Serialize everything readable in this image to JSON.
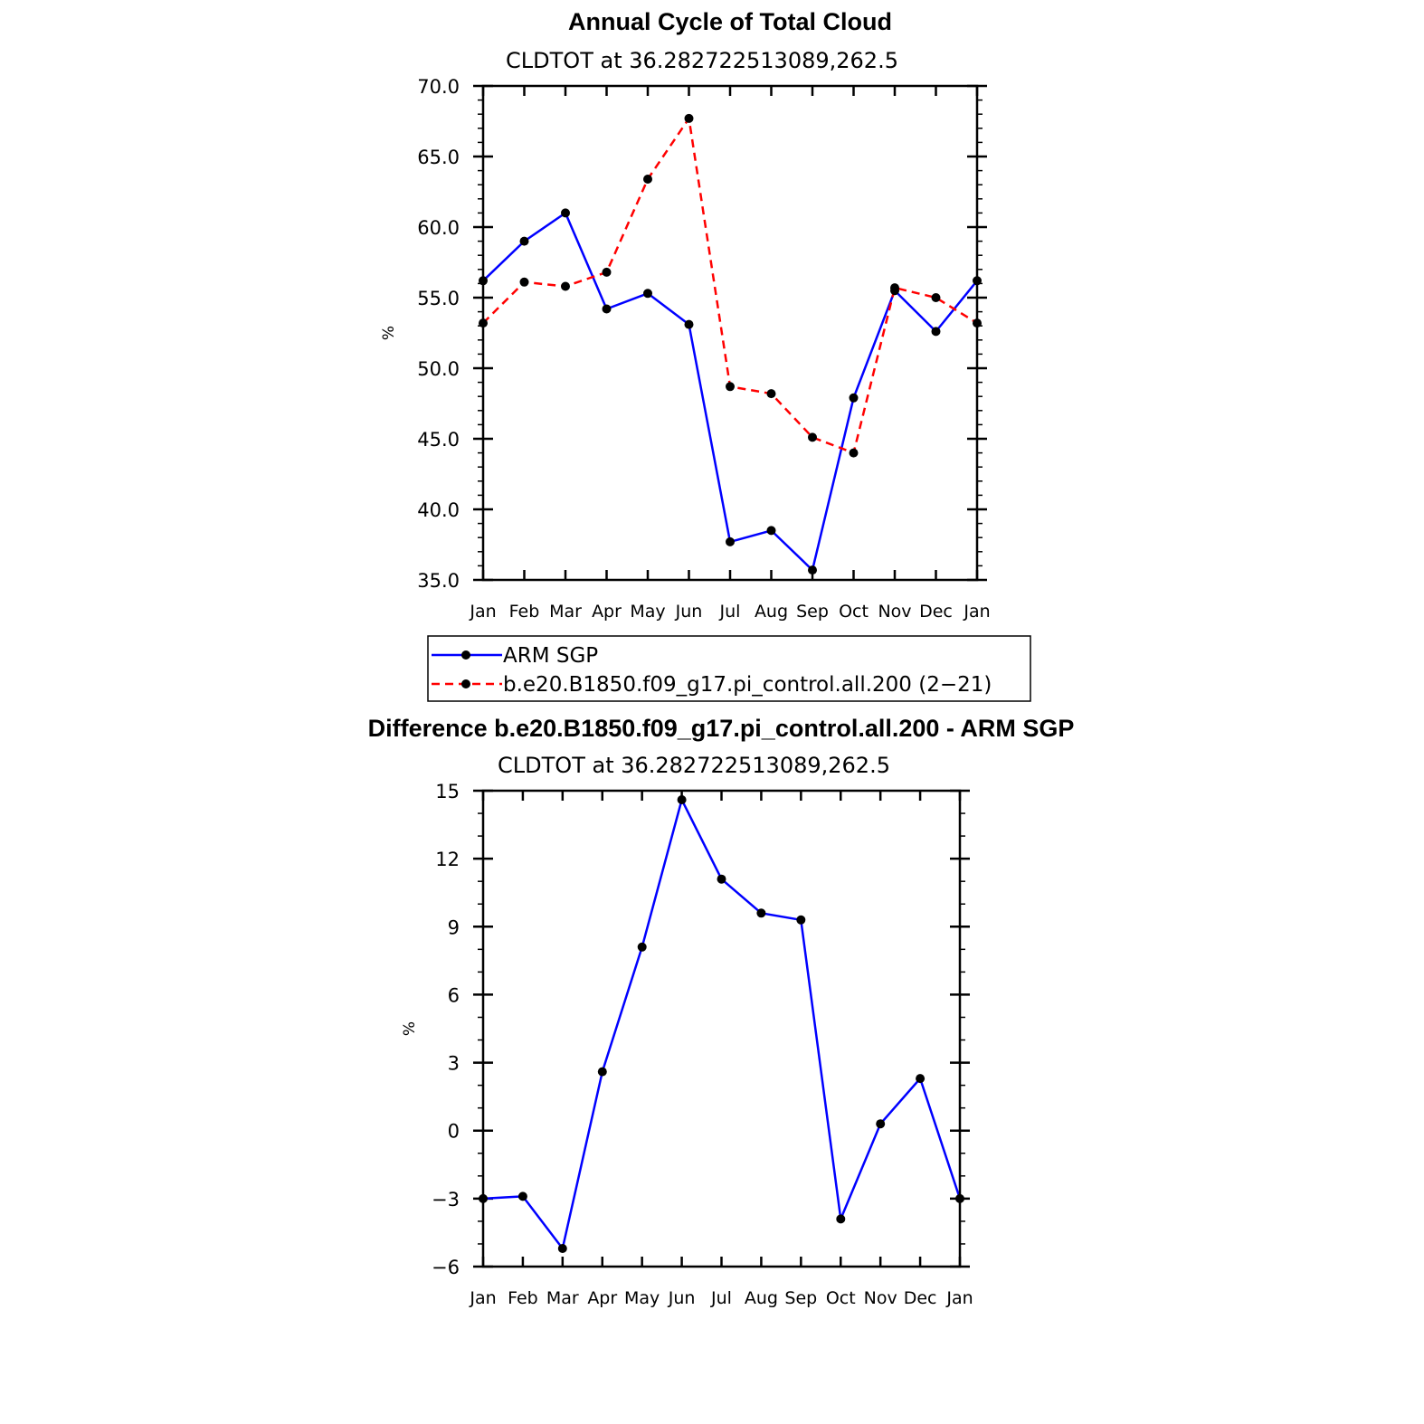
{
  "colors": {
    "arm": "#0000ff",
    "model": "#ff0000",
    "marker": "#000000",
    "axes": "#000000"
  },
  "chart_data": [
    {
      "type": "line",
      "title": "Annual Cycle of Total Cloud",
      "subtitle": "CLDTOT at 36.282722513089,262.5",
      "xlabel": "",
      "ylabel": "%",
      "categories": [
        "Jan",
        "Feb",
        "Mar",
        "Apr",
        "May",
        "Jun",
        "Jul",
        "Aug",
        "Sep",
        "Oct",
        "Nov",
        "Dec",
        "Jan"
      ],
      "ylim": [
        35.0,
        70.0
      ],
      "yticks": [
        "35.0",
        "40.0",
        "45.0",
        "50.0",
        "55.0",
        "60.0",
        "65.0",
        "70.0"
      ],
      "series": [
        {
          "name": "ARM SGP",
          "style": "solid",
          "color": "#0000ff",
          "values": [
            56.2,
            59.0,
            61.0,
            54.2,
            55.3,
            53.1,
            37.7,
            38.5,
            35.7,
            47.9,
            55.5,
            52.6,
            56.2
          ]
        },
        {
          "name": "b.e20.B1850.f09_g17.pi_control.all.200 (2−21)",
          "style": "dashed",
          "color": "#ff0000",
          "values": [
            53.2,
            56.1,
            55.8,
            56.8,
            63.4,
            67.7,
            48.7,
            48.2,
            45.1,
            44.0,
            55.7,
            55.0,
            53.2
          ]
        }
      ],
      "legend": "below"
    },
    {
      "type": "line",
      "title": "Difference b.e20.B1850.f09_g17.pi_control.all.200 - ARM SGP",
      "subtitle": "CLDTOT at 36.282722513089,262.5",
      "xlabel": "",
      "ylabel": "%",
      "categories": [
        "Jan",
        "Feb",
        "Mar",
        "Apr",
        "May",
        "Jun",
        "Jul",
        "Aug",
        "Sep",
        "Oct",
        "Nov",
        "Dec",
        "Jan"
      ],
      "ylim": [
        -6,
        15
      ],
      "yticks": [
        "−6",
        "−3",
        "0",
        "3",
        "6",
        "9",
        "12",
        "15"
      ],
      "series": [
        {
          "name": "Difference",
          "style": "solid",
          "color": "#0000ff",
          "values": [
            -3.0,
            -2.9,
            -5.2,
            2.6,
            8.1,
            14.6,
            11.1,
            9.6,
            9.3,
            -3.9,
            0.3,
            2.3,
            -3.0
          ]
        }
      ]
    }
  ]
}
